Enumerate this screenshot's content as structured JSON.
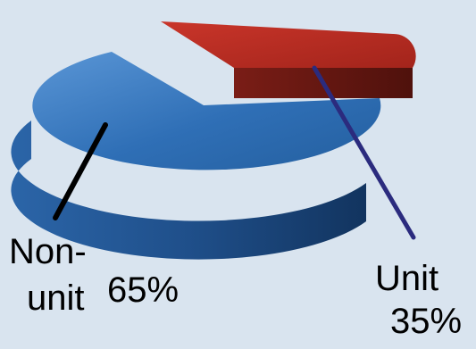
{
  "chart_data": {
    "type": "pie",
    "style": "3d-exploded",
    "slices": [
      {
        "category_line1": "Non-",
        "category_line2": "unit",
        "value": 65,
        "value_label": "65%",
        "color": "#2f6fb6",
        "side_color": "#1d4f8c",
        "leader_color": "#000000"
      },
      {
        "category_line1": "Unit",
        "category_line2": "",
        "value": 35,
        "value_label": "35%",
        "color": "#b22a20",
        "side_color": "#6e1a14",
        "leader_color": "#2b2b7e"
      }
    ]
  },
  "background": "#d9e4ef"
}
